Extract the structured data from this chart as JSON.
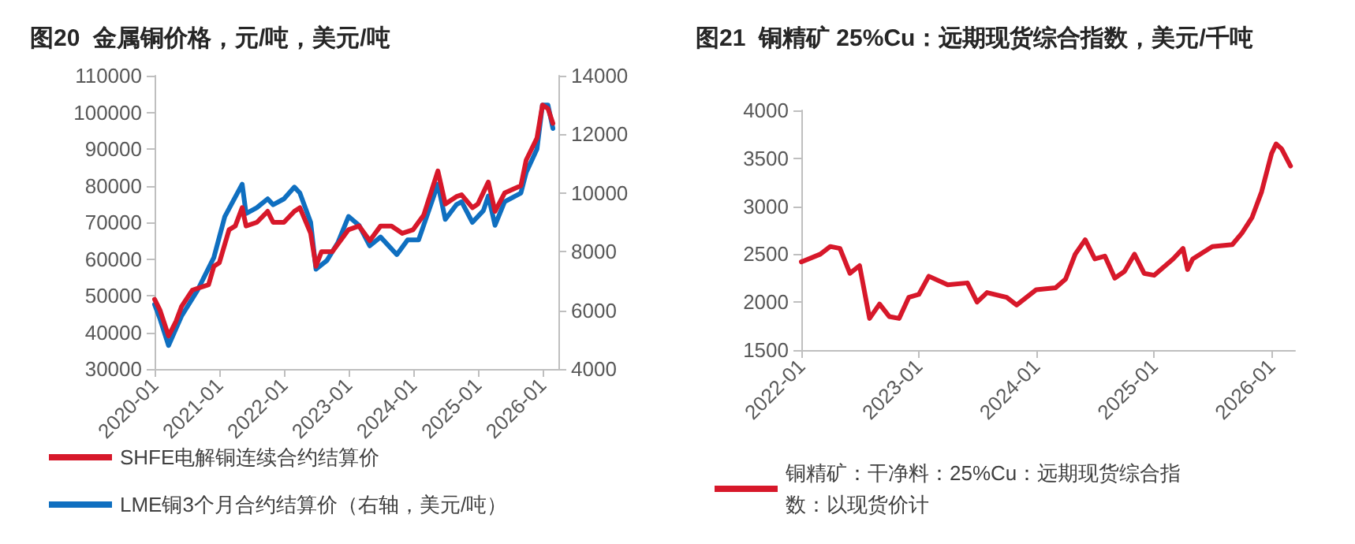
{
  "chart_data": [
    {
      "type": "line",
      "title": "图20  金属铜价格，元/吨，美元/吨",
      "legend": "bottom",
      "grid": false,
      "marker": "none",
      "line_style": "solid",
      "xlim": [
        "2020-01",
        "2026-04"
      ],
      "xticks": [
        "2020-01",
        "2021-01",
        "2022-01",
        "2023-01",
        "2024-01",
        "2025-01",
        "2026-01"
      ],
      "ylim": [
        30000,
        110000
      ],
      "yticks": [
        30000,
        40000,
        50000,
        60000,
        70000,
        80000,
        90000,
        100000,
        110000
      ],
      "y2lim": [
        4000,
        14000
      ],
      "y2ticks": [
        4000,
        6000,
        8000,
        10000,
        12000,
        14000
      ],
      "series": [
        {
          "name": "SHFE电解铜连续合约结算价",
          "color": "#d7182a",
          "x": [
            "2020-01",
            "2020-02",
            "2020-03-20",
            "2020-05",
            "2020-06",
            "2020-08",
            "2020-11",
            "2020-12",
            "2021-01",
            "2021-02-25",
            "2021-04",
            "2021-05-10",
            "2021-06",
            "2021-08",
            "2021-10",
            "2021-11",
            "2022-01",
            "2022-03",
            "2022-04",
            "2022-06",
            "2022-07",
            "2022-08",
            "2022-10",
            "2022-12",
            "2023-01",
            "2023-03",
            "2023-05",
            "2023-07",
            "2023-09",
            "2023-11",
            "2024-01",
            "2024-03",
            "2024-05-20",
            "2024-07",
            "2024-09",
            "2024-10",
            "2024-12",
            "2025-01",
            "2025-03",
            "2025-04-08",
            "2025-06",
            "2025-09",
            "2025-10",
            "2025-12",
            "2026-01",
            "2026-02",
            "2026-03"
          ],
          "values": [
            49000,
            46000,
            39000,
            43000,
            47000,
            51500,
            53000,
            58000,
            59000,
            68000,
            69000,
            74000,
            69000,
            70000,
            73000,
            70000,
            70000,
            73000,
            74000,
            67000,
            58000,
            62000,
            62000,
            66000,
            68000,
            69000,
            65000,
            69000,
            69000,
            67000,
            68000,
            72000,
            84000,
            75000,
            77000,
            77500,
            74000,
            75000,
            81000,
            73000,
            78000,
            80000,
            87000,
            93000,
            102000,
            101000,
            97000
          ]
        },
        {
          "name": "LME铜3个月合约结算价（右轴，美元/吨）",
          "color": "#0f6fc0",
          "axis": "y2",
          "x": [
            "2020-01",
            "2020-02",
            "2020-03-20",
            "2020-06",
            "2020-09",
            "2020-12",
            "2021-02",
            "2021-05-10",
            "2021-06",
            "2021-08",
            "2021-10",
            "2021-11",
            "2022-01",
            "2022-03",
            "2022-04",
            "2022-06",
            "2022-07",
            "2022-09",
            "2022-11",
            "2023-01",
            "2023-03",
            "2023-05",
            "2023-07",
            "2023-10",
            "2023-12",
            "2024-02",
            "2024-05-20",
            "2024-07",
            "2024-09",
            "2024-10",
            "2024-12",
            "2025-02",
            "2025-03",
            "2025-04-08",
            "2025-06",
            "2025-09",
            "2025-10",
            "2025-12",
            "2026-01",
            "2026-02",
            "2026-03"
          ],
          "values": [
            6200,
            5700,
            4800,
            5800,
            6700,
            7800,
            9200,
            10300,
            9300,
            9500,
            9800,
            9600,
            9800,
            10200,
            10000,
            9000,
            7400,
            7700,
            8300,
            9200,
            8900,
            8200,
            8500,
            7900,
            8400,
            8400,
            10300,
            9100,
            9600,
            9700,
            9000,
            9400,
            9900,
            8900,
            9700,
            10000,
            10700,
            11500,
            13000,
            13000,
            12200
          ]
        }
      ]
    },
    {
      "type": "line",
      "title": "图21  铜精矿 25%Cu：远期现货综合指数，美元/千吨",
      "legend": "bottom",
      "grid": false,
      "marker": "none",
      "line_style": "solid",
      "xlim": [
        "2022-01",
        "2026-03-15"
      ],
      "xticks": [
        "2022-01",
        "2023-01",
        "2024-01",
        "2025-01",
        "2026-01"
      ],
      "ylim": [
        1500,
        4000
      ],
      "yticks": [
        1500,
        2000,
        2500,
        3000,
        3500,
        4000
      ],
      "series": [
        {
          "name": "铜精矿：干净料：25%Cu：远期现货综合指数：以现货价计",
          "color": "#d7182a",
          "x": [
            "2022-01",
            "2022-03",
            "2022-04",
            "2022-05",
            "2022-06",
            "2022-07",
            "2022-08",
            "2022-09",
            "2022-10",
            "2022-11",
            "2022-12",
            "2023-01",
            "2023-02",
            "2023-04",
            "2023-06",
            "2023-07",
            "2023-08",
            "2023-10",
            "2023-11",
            "2024-01",
            "2024-03",
            "2024-04",
            "2024-05",
            "2024-06",
            "2024-07",
            "2024-08",
            "2024-09",
            "2024-10",
            "2024-11",
            "2024-12",
            "2025-01",
            "2025-03",
            "2025-04",
            "2025-04-15",
            "2025-05",
            "2025-07",
            "2025-09",
            "2025-10",
            "2025-11",
            "2025-12",
            "2026-01",
            "2026-01-15",
            "2026-02",
            "2026-03"
          ],
          "values": [
            2420,
            2500,
            2580,
            2560,
            2300,
            2380,
            1830,
            1980,
            1850,
            1830,
            2050,
            2080,
            2270,
            2180,
            2200,
            2000,
            2100,
            2050,
            1970,
            2130,
            2150,
            2240,
            2500,
            2650,
            2450,
            2480,
            2250,
            2320,
            2500,
            2300,
            2280,
            2450,
            2560,
            2340,
            2450,
            2580,
            2600,
            2720,
            2880,
            3150,
            3550,
            3650,
            3600,
            3420
          ]
        }
      ]
    }
  ]
}
